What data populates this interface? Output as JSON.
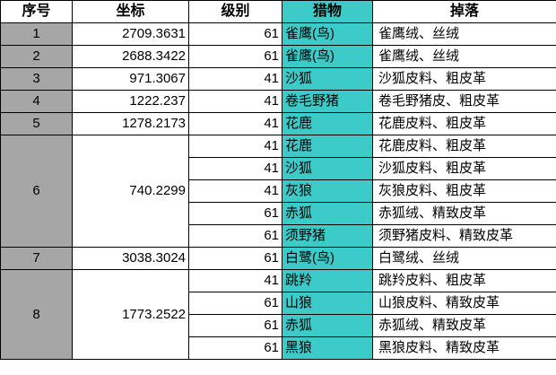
{
  "headers": {
    "index": "序号",
    "coord": "坐标",
    "level": "级别",
    "prey": "猎物",
    "drop": "掉落"
  },
  "groups": [
    {
      "index": "1",
      "coord": "2709.3631",
      "rows": [
        {
          "level": "61",
          "prey": "雀鹰(鸟)",
          "drop": "雀鹰绒、丝绒"
        }
      ]
    },
    {
      "index": "2",
      "coord": "2688.3422",
      "rows": [
        {
          "level": "61",
          "prey": "雀鹰(鸟)",
          "drop": "雀鹰绒、丝绒"
        }
      ]
    },
    {
      "index": "3",
      "coord": "971.3067",
      "rows": [
        {
          "level": "41",
          "prey": "沙狐",
          "drop": "沙狐皮料、粗皮革"
        }
      ]
    },
    {
      "index": "4",
      "coord": "1222.237",
      "rows": [
        {
          "level": "41",
          "prey": "卷毛野猪",
          "drop": "卷毛野猪皮、粗皮革"
        }
      ]
    },
    {
      "index": "5",
      "coord": "1278.2173",
      "rows": [
        {
          "level": "41",
          "prey": "花鹿",
          "drop": "花鹿皮料、粗皮革"
        }
      ]
    },
    {
      "index": "6",
      "coord": "740.2299",
      "rows": [
        {
          "level": "41",
          "prey": "花鹿",
          "drop": "花鹿皮料、粗皮革"
        },
        {
          "level": "41",
          "prey": "沙狐",
          "drop": "沙狐皮料、粗皮革"
        },
        {
          "level": "41",
          "prey": "灰狼",
          "drop": "灰狼皮料、粗皮革"
        },
        {
          "level": "61",
          "prey": "赤狐",
          "drop": "赤狐绒、精致皮革"
        },
        {
          "level": "61",
          "prey": "须野猪",
          "drop": "须野猪皮料、精致皮革"
        }
      ]
    },
    {
      "index": "7",
      "coord": "3038.3024",
      "rows": [
        {
          "level": "61",
          "prey": "白鹭(鸟)",
          "drop": "白鹭绒、丝绒"
        }
      ]
    },
    {
      "index": "8",
      "coord": "1773.2522",
      "rows": [
        {
          "level": "41",
          "prey": "跳羚",
          "drop": "跳羚皮料、粗皮革"
        },
        {
          "level": "61",
          "prey": "山狼",
          "drop": "山狼皮料、精致皮革"
        },
        {
          "level": "61",
          "prey": "赤狐",
          "drop": "赤狐绒、精致皮革"
        },
        {
          "level": "61",
          "prey": "黑狼",
          "drop": "黑狼皮料、精致皮革"
        }
      ]
    }
  ],
  "colors": {
    "index_fill": "#a6a6a6",
    "prey_fill": "#3ccbc8"
  }
}
